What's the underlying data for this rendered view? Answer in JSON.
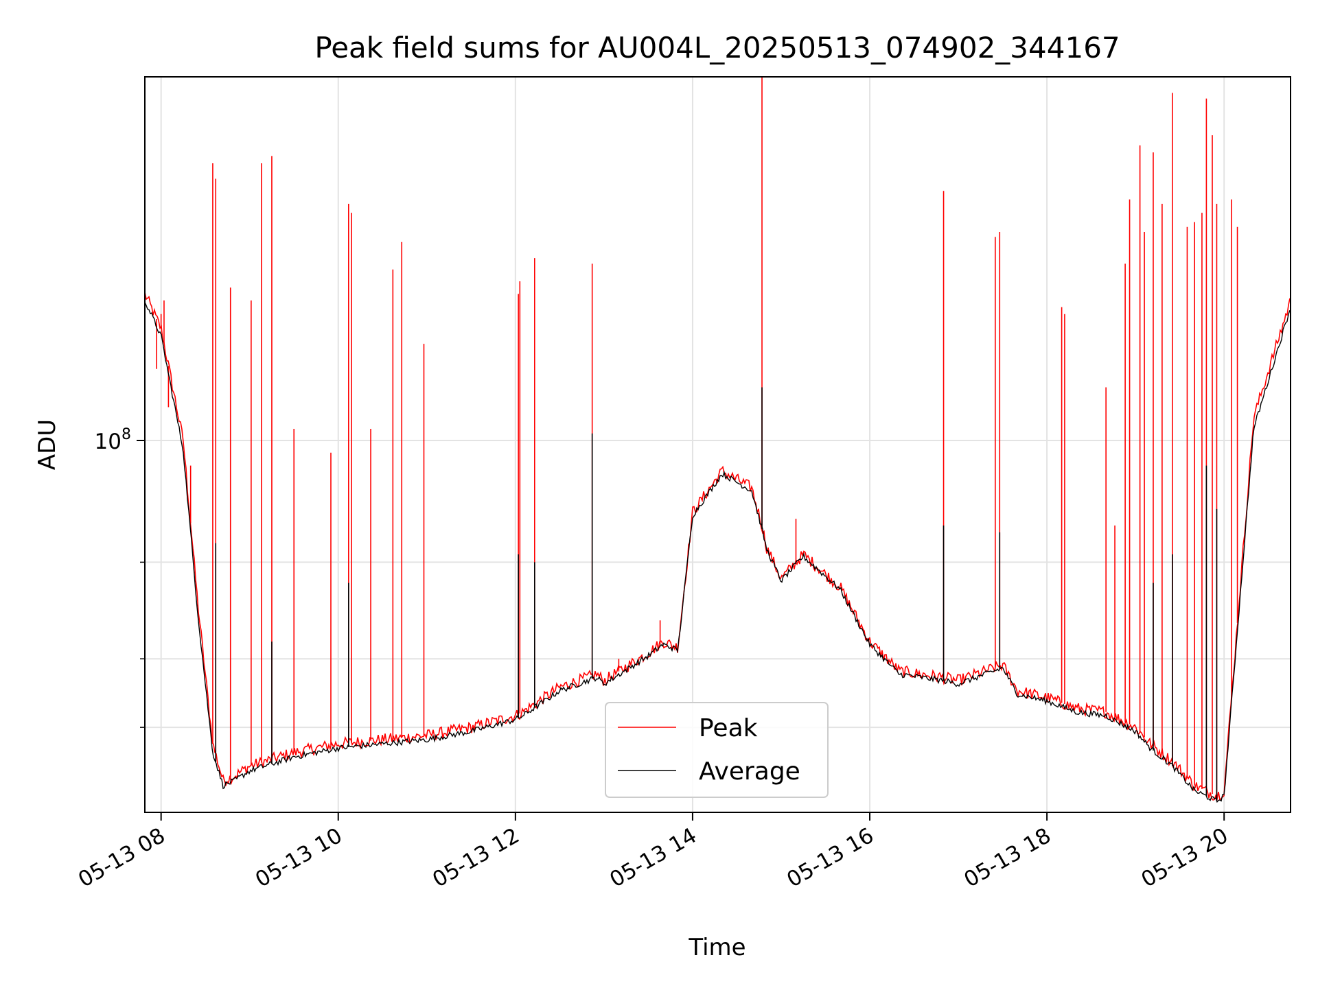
{
  "chart_data": {
    "type": "line",
    "title": "Peak field sums for AU004L_20250513_074902_344167",
    "xlabel": "Time",
    "ylabel": "ADU",
    "x_axis": {
      "type": "time",
      "range": [
        "05-13 07:49",
        "05-13 20:45"
      ],
      "ticks": [
        "05-13 08",
        "05-13 10",
        "05-13 12",
        "05-13 14",
        "05-13 16",
        "05-13 18",
        "05-13 20"
      ]
    },
    "y_axis": {
      "scale": "log",
      "range": [
        21000000,
        460000000
      ],
      "major_ticks": [
        {
          "value": 100000000,
          "base": "10",
          "exp": "8"
        }
      ],
      "minor_ticks": [
        30000000,
        40000000,
        60000000
      ]
    },
    "grid": true,
    "legend_position": "lower center",
    "series": [
      {
        "name": "Peak",
        "color": "#ff0000",
        "x": [
          "07:49",
          "08:00",
          "08:15",
          "08:25",
          "08:35",
          "08:42",
          "08:50",
          "09:00",
          "09:30",
          "10:00",
          "10:30",
          "11:00",
          "11:30",
          "12:00",
          "12:05",
          "12:30",
          "12:55",
          "13:00",
          "13:30",
          "13:40",
          "13:50",
          "14:00",
          "14:20",
          "14:40",
          "14:47",
          "14:50",
          "15:00",
          "15:15",
          "15:40",
          "16:00",
          "16:20",
          "16:50",
          "17:00",
          "17:30",
          "17:40",
          "18:00",
          "18:20",
          "18:40",
          "19:00",
          "19:10",
          "19:25",
          "19:40",
          "19:55",
          "20:00",
          "20:20",
          "20:45"
        ],
        "y": [
          185000000,
          160000000,
          100000000,
          50000000,
          28000000,
          24000000,
          24500000,
          25500000,
          27000000,
          28000000,
          28500000,
          29000000,
          30000000,
          31500000,
          32000000,
          35500000,
          37500000,
          36500000,
          41000000,
          43000000,
          42000000,
          74000000,
          88000000,
          82000000,
          70000000,
          64000000,
          56000000,
          62000000,
          54000000,
          43000000,
          38000000,
          37000000,
          36500000,
          39000000,
          35000000,
          34000000,
          32500000,
          32000000,
          30000000,
          28000000,
          26000000,
          23500000,
          22500000,
          23000000,
          110000000,
          180000000
        ]
      },
      {
        "name": "Average",
        "color": "#000000",
        "x": [
          "07:49",
          "08:00",
          "08:15",
          "08:25",
          "08:35",
          "08:42",
          "08:50",
          "09:00",
          "09:30",
          "10:00",
          "10:30",
          "11:00",
          "11:30",
          "12:00",
          "12:05",
          "12:30",
          "12:55",
          "13:00",
          "13:30",
          "13:40",
          "13:50",
          "14:00",
          "14:20",
          "14:40",
          "14:47",
          "14:50",
          "15:00",
          "15:15",
          "15:40",
          "16:00",
          "16:20",
          "16:50",
          "17:00",
          "17:30",
          "17:40",
          "18:00",
          "18:20",
          "18:40",
          "19:00",
          "19:10",
          "19:25",
          "19:40",
          "19:55",
          "20:00",
          "20:20",
          "20:45"
        ],
        "y": [
          180000000,
          155000000,
          96000000,
          48000000,
          27000000,
          23500000,
          24000000,
          25000000,
          26500000,
          27500000,
          28000000,
          28500000,
          29500000,
          31000000,
          31500000,
          35000000,
          37000000,
          36000000,
          40500000,
          42500000,
          41500000,
          73000000,
          87000000,
          81000000,
          69000000,
          63500000,
          55500000,
          61500000,
          53500000,
          42500000,
          37500000,
          36500000,
          36000000,
          38500000,
          34500000,
          33500000,
          32000000,
          31500000,
          29500000,
          27500000,
          25500000,
          23000000,
          22000000,
          22500000,
          105000000,
          175000000
        ]
      }
    ],
    "spikes": {
      "Peak": [
        {
          "x": "07:57",
          "y": 135000000
        },
        {
          "x": "08:00",
          "y": 170000000
        },
        {
          "x": "08:02",
          "y": 180000000
        },
        {
          "x": "08:05",
          "y": 115000000
        },
        {
          "x": "08:20",
          "y": 90000000
        },
        {
          "x": "08:35",
          "y": 320000000
        },
        {
          "x": "08:37",
          "y": 300000000
        },
        {
          "x": "08:47",
          "y": 190000000
        },
        {
          "x": "09:01",
          "y": 180000000
        },
        {
          "x": "09:08",
          "y": 320000000
        },
        {
          "x": "09:15",
          "y": 330000000
        },
        {
          "x": "09:30",
          "y": 105000000
        },
        {
          "x": "09:55",
          "y": 95000000
        },
        {
          "x": "10:07",
          "y": 270000000
        },
        {
          "x": "10:09",
          "y": 260000000
        },
        {
          "x": "10:22",
          "y": 105000000
        },
        {
          "x": "10:37",
          "y": 205000000
        },
        {
          "x": "10:43",
          "y": 230000000
        },
        {
          "x": "10:58",
          "y": 150000000
        },
        {
          "x": "11:20",
          "y": 29500000
        },
        {
          "x": "12:02",
          "y": 185000000
        },
        {
          "x": "12:03",
          "y": 195000000
        },
        {
          "x": "12:13",
          "y": 215000000
        },
        {
          "x": "12:52",
          "y": 210000000
        },
        {
          "x": "13:10",
          "y": 40000000
        },
        {
          "x": "13:38",
          "y": 47000000
        },
        {
          "x": "14:47",
          "y": 460000000
        },
        {
          "x": "15:10",
          "y": 72000000
        },
        {
          "x": "16:50",
          "y": 285000000
        },
        {
          "x": "17:25",
          "y": 235000000
        },
        {
          "x": "17:28",
          "y": 240000000
        },
        {
          "x": "18:10",
          "y": 175000000
        },
        {
          "x": "18:12",
          "y": 170000000
        },
        {
          "x": "18:40",
          "y": 125000000
        },
        {
          "x": "18:46",
          "y": 70000000
        },
        {
          "x": "18:53",
          "y": 210000000
        },
        {
          "x": "18:56",
          "y": 275000000
        },
        {
          "x": "19:03",
          "y": 345000000
        },
        {
          "x": "19:06",
          "y": 240000000
        },
        {
          "x": "19:12",
          "y": 335000000
        },
        {
          "x": "19:18",
          "y": 270000000
        },
        {
          "x": "19:25",
          "y": 430000000
        },
        {
          "x": "19:35",
          "y": 245000000
        },
        {
          "x": "19:40",
          "y": 250000000
        },
        {
          "x": "19:45",
          "y": 260000000
        },
        {
          "x": "19:48",
          "y": 420000000
        },
        {
          "x": "19:52",
          "y": 360000000
        },
        {
          "x": "19:55",
          "y": 270000000
        },
        {
          "x": "20:05",
          "y": 275000000
        },
        {
          "x": "20:09",
          "y": 245000000
        }
      ],
      "Average": [
        {
          "x": "08:37",
          "y": 65000000
        },
        {
          "x": "09:15",
          "y": 43000000
        },
        {
          "x": "10:07",
          "y": 55000000
        },
        {
          "x": "12:02",
          "y": 62000000
        },
        {
          "x": "12:13",
          "y": 60000000
        },
        {
          "x": "12:52",
          "y": 103000000
        },
        {
          "x": "14:47",
          "y": 125000000
        },
        {
          "x": "16:50",
          "y": 70000000
        },
        {
          "x": "17:28",
          "y": 68000000
        },
        {
          "x": "19:12",
          "y": 55000000
        },
        {
          "x": "19:25",
          "y": 62000000
        },
        {
          "x": "19:48",
          "y": 90000000
        },
        {
          "x": "19:55",
          "y": 75000000
        }
      ]
    }
  }
}
